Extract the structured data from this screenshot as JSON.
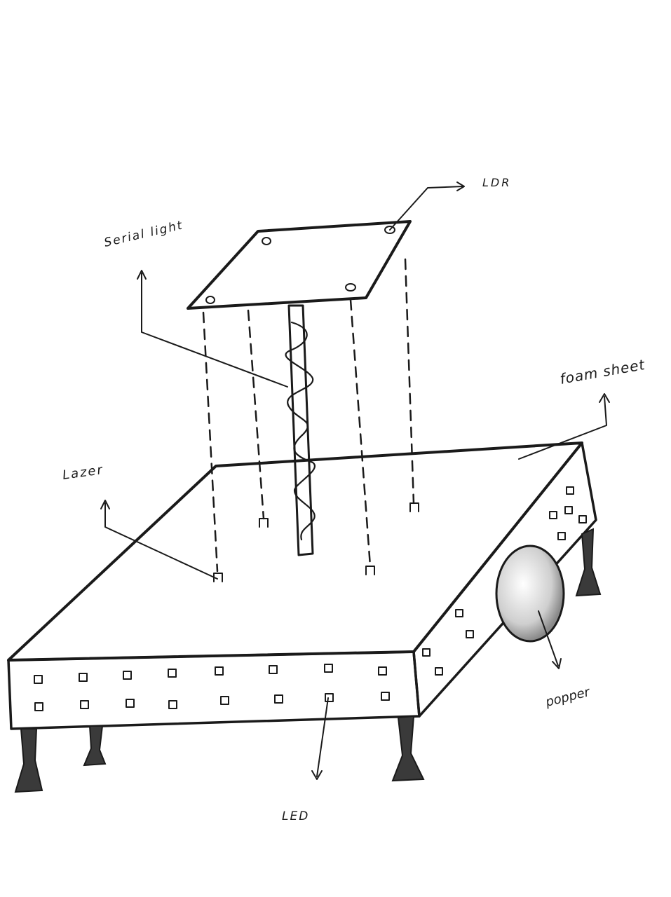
{
  "labels": {
    "ldr": "LDR",
    "serial_light": "Serial light",
    "foam_sheet": "foam sheet",
    "lazer": "Lazer",
    "popper": "popper",
    "led": "LED"
  },
  "colors": {
    "ink": "#1a1a1a",
    "shade": "#c8c8c8",
    "paper": "#ffffff"
  }
}
